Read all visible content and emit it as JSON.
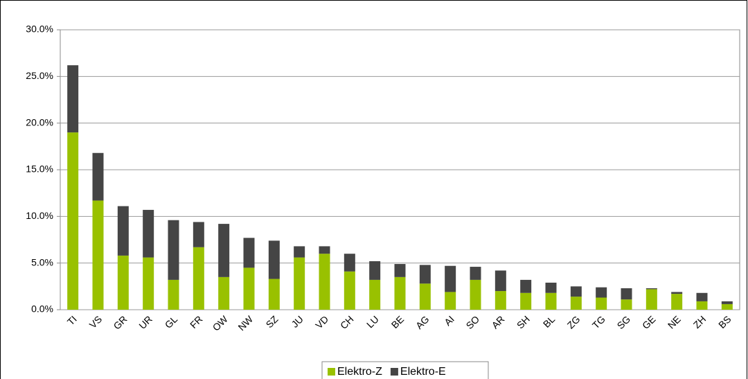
{
  "chart_data": {
    "type": "stacked_bar",
    "categories": [
      "TI",
      "VS",
      "GR",
      "UR",
      "GL",
      "FR",
      "OW",
      "NW",
      "SZ",
      "JU",
      "VD",
      "CH",
      "LU",
      "BE",
      "AG",
      "AI",
      "SO",
      "AR",
      "SH",
      "BL",
      "ZG",
      "TG",
      "SG",
      "GE",
      "NE",
      "ZH",
      "BS"
    ],
    "series": [
      {
        "name": "Elektro-Z",
        "color": "#99c100",
        "values": [
          19.0,
          11.7,
          5.8,
          5.6,
          3.2,
          6.7,
          3.5,
          4.5,
          3.3,
          5.6,
          6.0,
          4.1,
          3.2,
          3.5,
          2.8,
          1.9,
          3.2,
          2.0,
          1.8,
          1.8,
          1.4,
          1.3,
          1.1,
          2.2,
          1.7,
          0.9,
          0.6
        ]
      },
      {
        "name": "Elektro-E",
        "color": "#454545",
        "values": [
          7.2,
          5.1,
          5.3,
          5.1,
          6.4,
          2.7,
          5.7,
          3.2,
          4.1,
          1.2,
          0.8,
          1.9,
          2.0,
          1.4,
          2.0,
          2.8,
          1.4,
          2.2,
          1.4,
          1.1,
          1.1,
          1.1,
          1.2,
          0.1,
          0.2,
          0.9,
          0.3
        ]
      }
    ],
    "ylim": [
      0,
      30
    ],
    "yticks": [
      {
        "value": 0,
        "label": "0.0%"
      },
      {
        "value": 5,
        "label": "5.0%"
      },
      {
        "value": 10,
        "label": "10.0%"
      },
      {
        "value": 15,
        "label": "15.0%"
      },
      {
        "value": 20,
        "label": "20.0%"
      },
      {
        "value": 25,
        "label": "25.0%"
      },
      {
        "value": 30,
        "label": "30.0%"
      }
    ],
    "grid": true,
    "legend": "bottom"
  }
}
